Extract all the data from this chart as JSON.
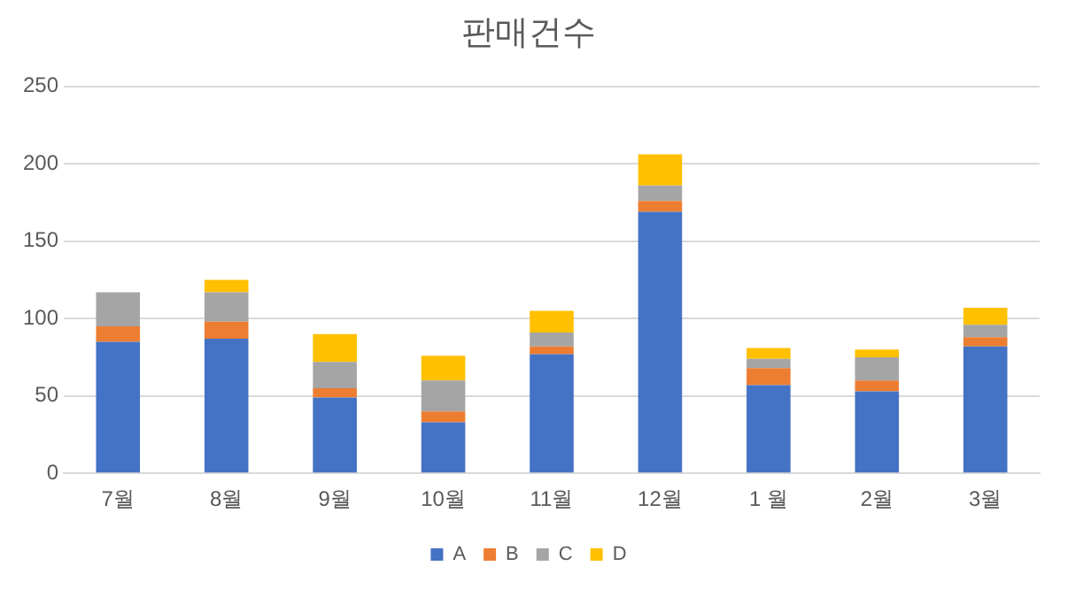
{
  "chart_data": {
    "type": "bar",
    "title": "판매건수",
    "stacked": true,
    "categories": [
      "7월",
      "8월",
      "9월",
      "10월",
      "11월",
      "12월",
      "1 월",
      "2월",
      "3월"
    ],
    "series": [
      {
        "name": "A",
        "color": "#4472c4",
        "values": [
          85,
          87,
          49,
          33,
          77,
          169,
          57,
          53,
          82
        ]
      },
      {
        "name": "B",
        "color": "#ed7d31",
        "values": [
          10,
          11,
          6,
          7,
          5,
          7,
          11,
          7,
          6
        ]
      },
      {
        "name": "C",
        "color": "#a5a5a5",
        "values": [
          22,
          19,
          17,
          20,
          9,
          10,
          6,
          15,
          8
        ]
      },
      {
        "name": "D",
        "color": "#ffc000",
        "values": [
          0,
          8,
          18,
          16,
          14,
          20,
          7,
          5,
          11
        ]
      }
    ],
    "ylim": [
      0,
      250
    ],
    "yticks": [
      0,
      50,
      100,
      150,
      200,
      250
    ],
    "grid": "y",
    "legend": "bottom"
  }
}
